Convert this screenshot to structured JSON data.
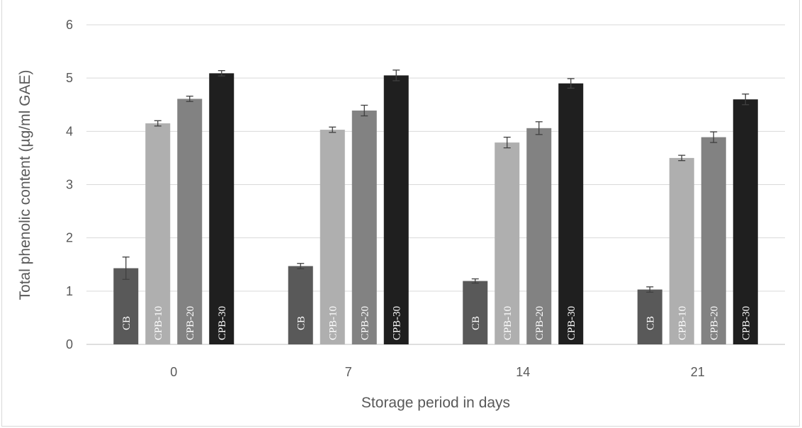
{
  "chart_data": {
    "type": "bar",
    "title": "",
    "xlabel": "Storage period in days",
    "ylabel": "Total phenolic content (µg/ml GAE)",
    "categories": [
      "0",
      "7",
      "14",
      "21"
    ],
    "ylim": [
      0,
      6
    ],
    "yticks": [
      "0",
      "1",
      "2",
      "3",
      "4",
      "5",
      "6"
    ],
    "grid": true,
    "series": [
      {
        "name": "CB",
        "color": "#595959",
        "values": [
          1.43,
          1.47,
          1.19,
          1.03
        ],
        "errors": [
          0.21,
          0.05,
          0.04,
          0.05
        ]
      },
      {
        "name": "CPB-10",
        "color": "#afafaf",
        "values": [
          4.15,
          4.03,
          3.79,
          3.5
        ],
        "errors": [
          0.05,
          0.05,
          0.1,
          0.05
        ]
      },
      {
        "name": "CPB-20",
        "color": "#828282",
        "values": [
          4.61,
          4.39,
          4.06,
          3.89
        ],
        "errors": [
          0.05,
          0.1,
          0.12,
          0.1
        ]
      },
      {
        "name": "CPB-30",
        "color": "#1f1f1f",
        "values": [
          5.09,
          5.05,
          4.9,
          4.6
        ],
        "errors": [
          0.05,
          0.1,
          0.09,
          0.1
        ]
      }
    ]
  }
}
